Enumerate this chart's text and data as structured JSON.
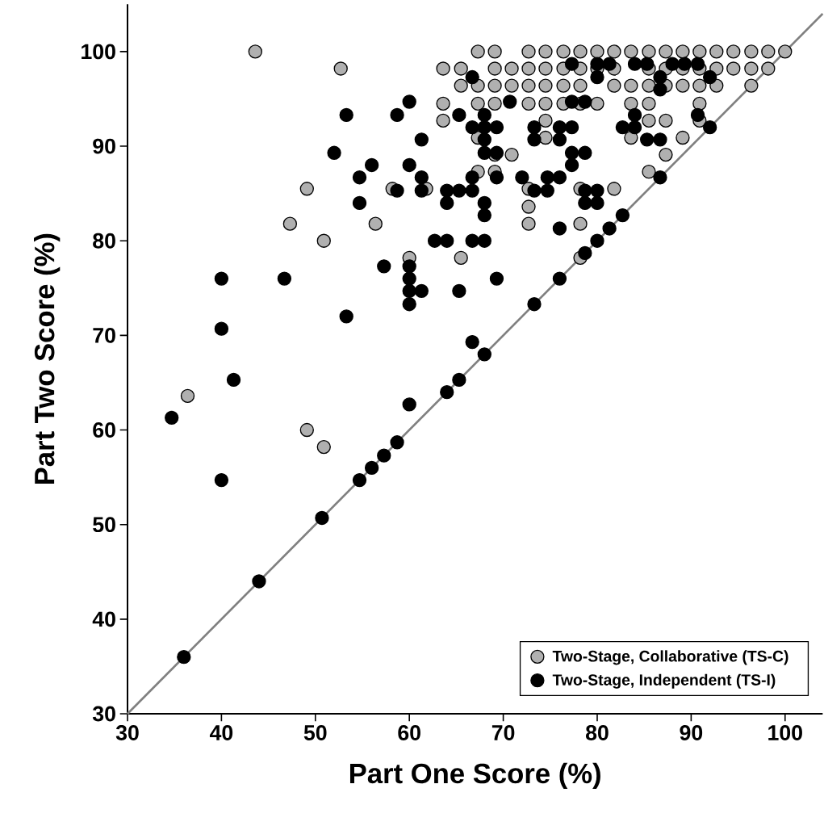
{
  "chart_data": {
    "type": "scatter",
    "xlabel": "Part One Score (%)",
    "ylabel": "Part Two Score (%)",
    "xlim": [
      30,
      104
    ],
    "ylim": [
      30,
      105
    ],
    "xticks": [
      30,
      40,
      50,
      60,
      70,
      80,
      90,
      100
    ],
    "yticks": [
      30,
      40,
      50,
      60,
      70,
      80,
      90,
      100
    ],
    "legend": "bottom right",
    "series": [
      {
        "name": "Two-Stage, Collaborative (TS-C)",
        "marker": "circle",
        "color": "#b0b0b0",
        "x": [
          43.6,
          67.3,
          69.1,
          72.7,
          74.5,
          76.4,
          78.2,
          80,
          81.8,
          83.6,
          85.5,
          87.3,
          89.1,
          90.9,
          92.7,
          94.5,
          96.4,
          98.2,
          100,
          52.7,
          63.6,
          65.5,
          69.1,
          70.9,
          72.7,
          74.5,
          76.4,
          78.2,
          80,
          81.8,
          85.5,
          87.3,
          89.1,
          90.9,
          92.7,
          94.5,
          96.4,
          98.2,
          65.5,
          67.3,
          69.1,
          70.9,
          72.7,
          74.5,
          76.4,
          78.2,
          81.8,
          83.6,
          85.5,
          87.3,
          89.1,
          90.9,
          92.7,
          96.4,
          63.6,
          67.3,
          69.1,
          72.7,
          74.5,
          76.4,
          78.2,
          80,
          83.6,
          85.5,
          90.9,
          63.6,
          74.5,
          85.5,
          87.3,
          90.9,
          67.3,
          74.5,
          83.6,
          89.1,
          69.1,
          70.9,
          87.3,
          67.3,
          69.1,
          85.5,
          49.1,
          58.2,
          61.8,
          72.7,
          78.2,
          81.8,
          72.7,
          47.3,
          56.4,
          72.7,
          78.2,
          50.9,
          60,
          65.5,
          78.2,
          36.4,
          49.1,
          50.9
        ],
        "values": [
          100,
          100,
          100,
          100,
          100,
          100,
          100,
          100,
          100,
          100,
          100,
          100,
          100,
          100,
          100,
          100,
          100,
          100,
          100,
          98.2,
          98.2,
          98.2,
          98.2,
          98.2,
          98.2,
          98.2,
          98.2,
          98.2,
          98.2,
          98.2,
          98.2,
          98.2,
          98.2,
          98.2,
          98.2,
          98.2,
          98.2,
          98.2,
          96.4,
          96.4,
          96.4,
          96.4,
          96.4,
          96.4,
          96.4,
          96.4,
          96.4,
          96.4,
          96.4,
          96.4,
          96.4,
          96.4,
          96.4,
          96.4,
          94.5,
          94.5,
          94.5,
          94.5,
          94.5,
          94.5,
          94.5,
          94.5,
          94.5,
          94.5,
          94.5,
          92.7,
          92.7,
          92.7,
          92.7,
          92.7,
          90.9,
          90.9,
          90.9,
          90.9,
          89.1,
          89.1,
          89.1,
          87.3,
          87.3,
          87.3,
          85.5,
          85.5,
          85.5,
          85.5,
          85.5,
          85.5,
          83.6,
          81.8,
          81.8,
          81.8,
          81.8,
          80,
          78.2,
          78.2,
          78.2,
          63.6,
          60,
          58.2
        ]
      },
      {
        "name": "Two-Stage, Independent (TS-I)",
        "marker": "circle",
        "color": "#000000",
        "x": [
          36,
          44,
          50.7,
          54.7,
          56,
          57.3,
          58.7,
          60,
          64,
          65.3,
          66.7,
          68,
          73.3,
          76,
          78.7,
          80,
          81.3,
          82.7,
          86.7,
          92,
          34.7,
          40,
          40,
          40,
          41.3,
          46.7,
          53.3,
          53.3,
          52,
          54.7,
          54.7,
          56,
          57.3,
          58.7,
          58.7,
          60,
          60,
          60,
          60,
          60,
          60,
          61.3,
          61.3,
          61.3,
          61.3,
          62.7,
          64,
          64,
          64,
          65.3,
          65.3,
          65.3,
          66.7,
          66.7,
          66.7,
          66.7,
          66.7,
          68,
          68,
          68,
          68,
          68,
          68,
          68,
          69.3,
          69.3,
          69.3,
          69.3,
          70.7,
          72,
          73.3,
          73.3,
          73.3,
          74.7,
          74.7,
          76,
          76,
          76,
          76,
          77.3,
          77.3,
          77.3,
          77.3,
          77.3,
          78.7,
          78.7,
          78.7,
          78.7,
          80,
          80,
          80,
          80,
          81.3,
          82.7,
          84,
          84,
          84,
          85.3,
          85.3,
          86.7,
          86.7,
          86.7,
          88,
          89.3,
          90.7,
          90.7,
          92
        ],
        "values": [
          36,
          44,
          50.7,
          54.7,
          56,
          57.3,
          58.7,
          62.7,
          64,
          65.3,
          69.3,
          68,
          73.3,
          76,
          78.7,
          80,
          81.3,
          82.7,
          86.7,
          92,
          61.3,
          54.7,
          70.7,
          76,
          65.3,
          76,
          72,
          93.3,
          89.3,
          86.7,
          84,
          88,
          77.3,
          93.3,
          85.3,
          94.7,
          88,
          77.3,
          76,
          74.7,
          73.3,
          90.7,
          86.7,
          85.3,
          74.7,
          80,
          85.3,
          84,
          80,
          93.3,
          85.3,
          74.7,
          97.3,
          92,
          86.7,
          85.3,
          80,
          93.3,
          92,
          90.7,
          89.3,
          84,
          82.7,
          80,
          92,
          89.3,
          86.7,
          76,
          94.7,
          86.7,
          92,
          90.7,
          85.3,
          86.7,
          85.3,
          92,
          90.7,
          86.7,
          81.3,
          98.7,
          94.7,
          92,
          89.3,
          88,
          94.7,
          89.3,
          85.3,
          84,
          98.7,
          97.3,
          85.3,
          84,
          98.7,
          92,
          98.7,
          93.3,
          92,
          98.7,
          90.7,
          97.3,
          96,
          90.7,
          98.7,
          98.7,
          98.7,
          93.3,
          97.3
        ]
      },
      {
        "type": "line",
        "marker": "none",
        "color": "#808080",
        "x": [
          30,
          104
        ],
        "values": [
          30,
          104
        ]
      }
    ]
  }
}
